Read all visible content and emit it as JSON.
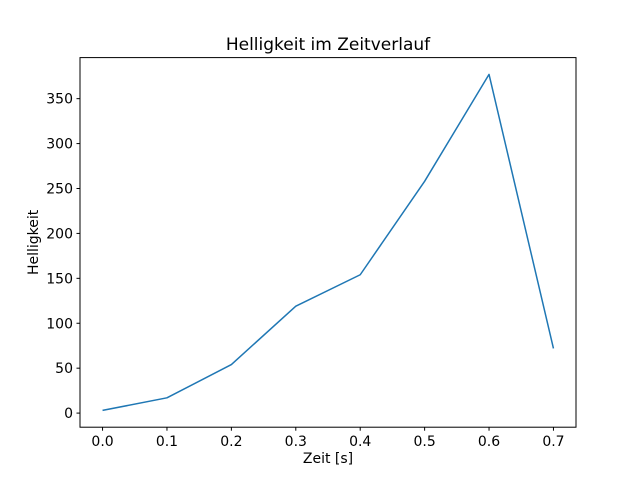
{
  "window": {
    "background": "#ffffff"
  },
  "chart_data": {
    "type": "line",
    "title": "Helligkeit im Zeitverlauf",
    "xlabel": "Zeit [s]",
    "ylabel": "Helligkeit",
    "x": [
      0.0,
      0.1,
      0.2,
      0.3,
      0.4,
      0.5,
      0.6,
      0.7
    ],
    "y": [
      3,
      17,
      54,
      119,
      154,
      258,
      377,
      72
    ],
    "xlim": [
      -0.035,
      0.735
    ],
    "ylim": [
      -15.7,
      395.7
    ],
    "xticks": [
      0.0,
      0.1,
      0.2,
      0.3,
      0.4,
      0.5,
      0.6,
      0.7
    ],
    "xtick_labels": [
      "0.0",
      "0.1",
      "0.2",
      "0.3",
      "0.4",
      "0.5",
      "0.6",
      "0.7"
    ],
    "yticks": [
      0,
      50,
      100,
      150,
      200,
      250,
      300,
      350
    ],
    "ytick_labels": [
      "0",
      "50",
      "100",
      "150",
      "200",
      "250",
      "300",
      "350"
    ],
    "grid": false,
    "legend_position": "none",
    "line_color": "#1f77b4",
    "line_width": 1.5,
    "axes_color": "#000000",
    "text_color": "#000000"
  }
}
